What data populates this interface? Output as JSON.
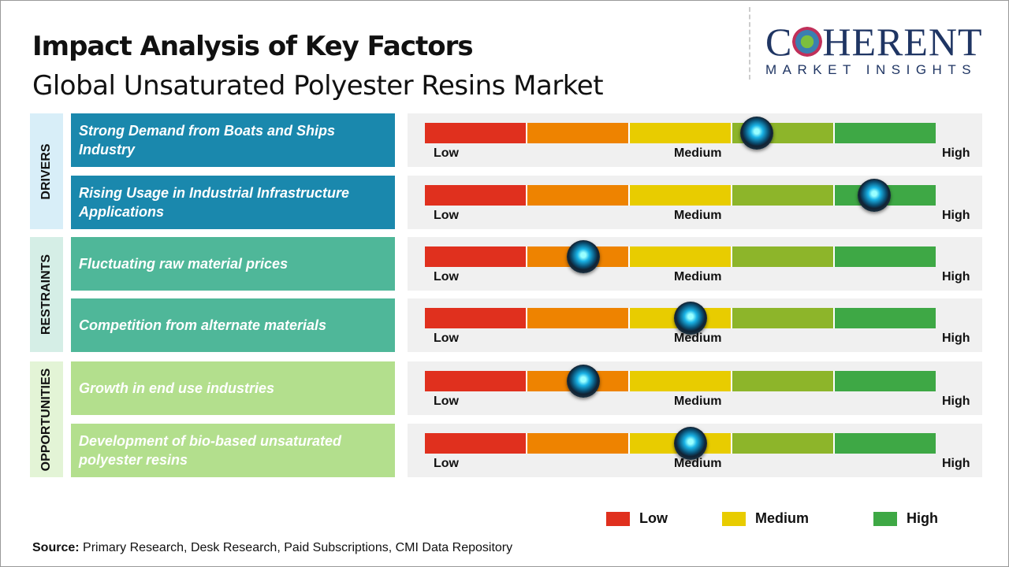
{
  "header": {
    "title": "Impact Analysis of Key Factors",
    "subtitle": "Global Unsaturated Polyester Resins Market"
  },
  "logo": {
    "main": "COHERENT",
    "sub": "MARKET INSIGHTS"
  },
  "colors": {
    "low": "#e0301e",
    "low_mid": "#ee8300",
    "medium": "#e8cc00",
    "mid_high": "#8db52a",
    "high": "#3ea845"
  },
  "chart_data": {
    "type": "table",
    "scale_labels": [
      "Low",
      "Medium",
      "High"
    ],
    "categories": [
      {
        "name": "DRIVERS",
        "color": "#1a88ad",
        "band": "#d8eef8",
        "factors": [
          {
            "label": "Strong Demand from Boats and Ships Industry",
            "impact": 0.65
          },
          {
            "label": "Rising Usage in Industrial Infrastructure Applications",
            "impact": 0.88
          }
        ]
      },
      {
        "name": "RESTRAINTS",
        "color": "#4fb799",
        "band": "#d5eee6",
        "factors": [
          {
            "label": "Fluctuating raw material prices",
            "impact": 0.31
          },
          {
            "label": "Competition from alternate materials",
            "impact": 0.52
          }
        ]
      },
      {
        "name": "OPPORTUNITIES",
        "color": "#b3df8d",
        "band": "#e3f4d6",
        "factors": [
          {
            "label": "Growth in end use industries",
            "impact": 0.31
          },
          {
            "label": "Development of bio-based unsaturated polyester resins",
            "impact": 0.52
          }
        ]
      }
    ],
    "legend": [
      "Low",
      "Medium",
      "High"
    ]
  },
  "source": {
    "label": "Source:",
    "text": " Primary Research, Desk Research, Paid Subscriptions, CMI Data Repository"
  }
}
